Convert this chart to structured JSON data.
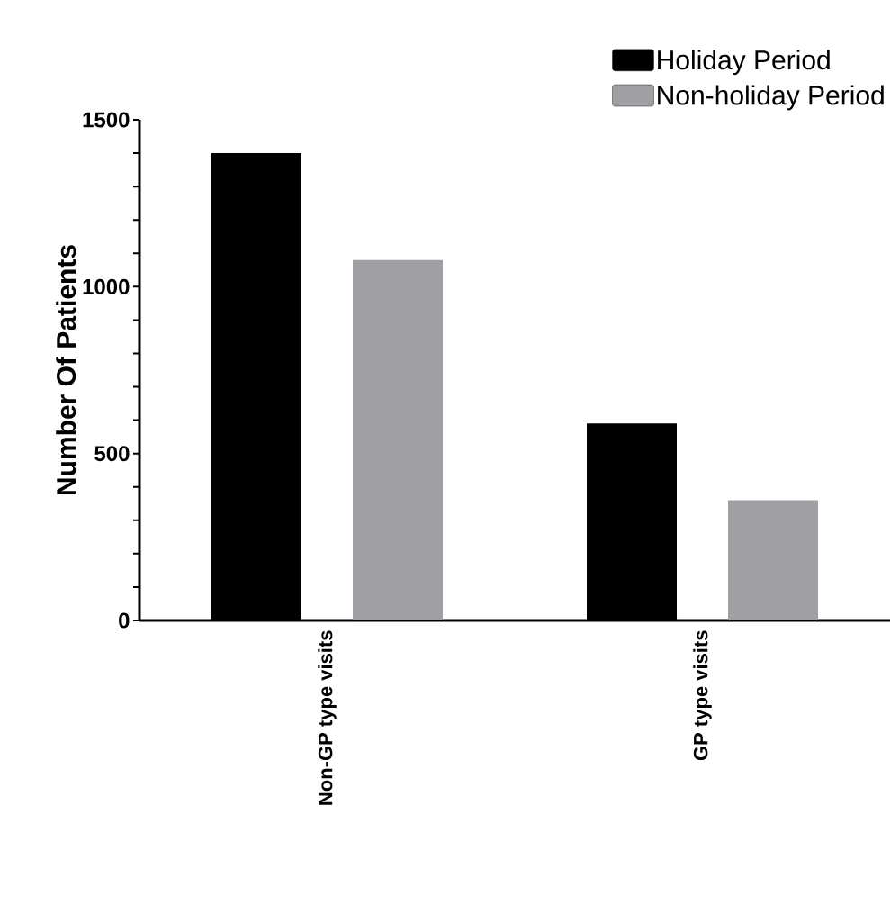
{
  "chart_data": {
    "type": "bar",
    "ylabel": "Number Of Patients",
    "categories": [
      "Non-GP type visits",
      "GP type visits"
    ],
    "series": [
      {
        "name": "Holiday Period",
        "color": "#000000",
        "values": [
          1400,
          590
        ]
      },
      {
        "name": "Non-holiday Period",
        "color": "#a0a0a4",
        "values": [
          1080,
          360
        ]
      }
    ],
    "ylim": [
      0,
      1500
    ],
    "yticks": [
      0,
      {
        "value": 100,
        "label": null
      },
      {
        "value": 200,
        "label": null
      },
      {
        "value": 300,
        "label": null
      },
      {
        "value": 400,
        "label": null
      },
      500,
      {
        "value": 600,
        "label": null
      },
      {
        "value": 700,
        "label": null
      },
      {
        "value": 800,
        "label": null
      },
      {
        "value": 900,
        "label": null
      },
      1000,
      {
        "value": 1100,
        "label": null
      },
      {
        "value": 1200,
        "label": null
      },
      {
        "value": 1300,
        "label": null
      },
      {
        "value": 1400,
        "label": null
      },
      1500
    ],
    "grid": false,
    "legend": "top right"
  }
}
